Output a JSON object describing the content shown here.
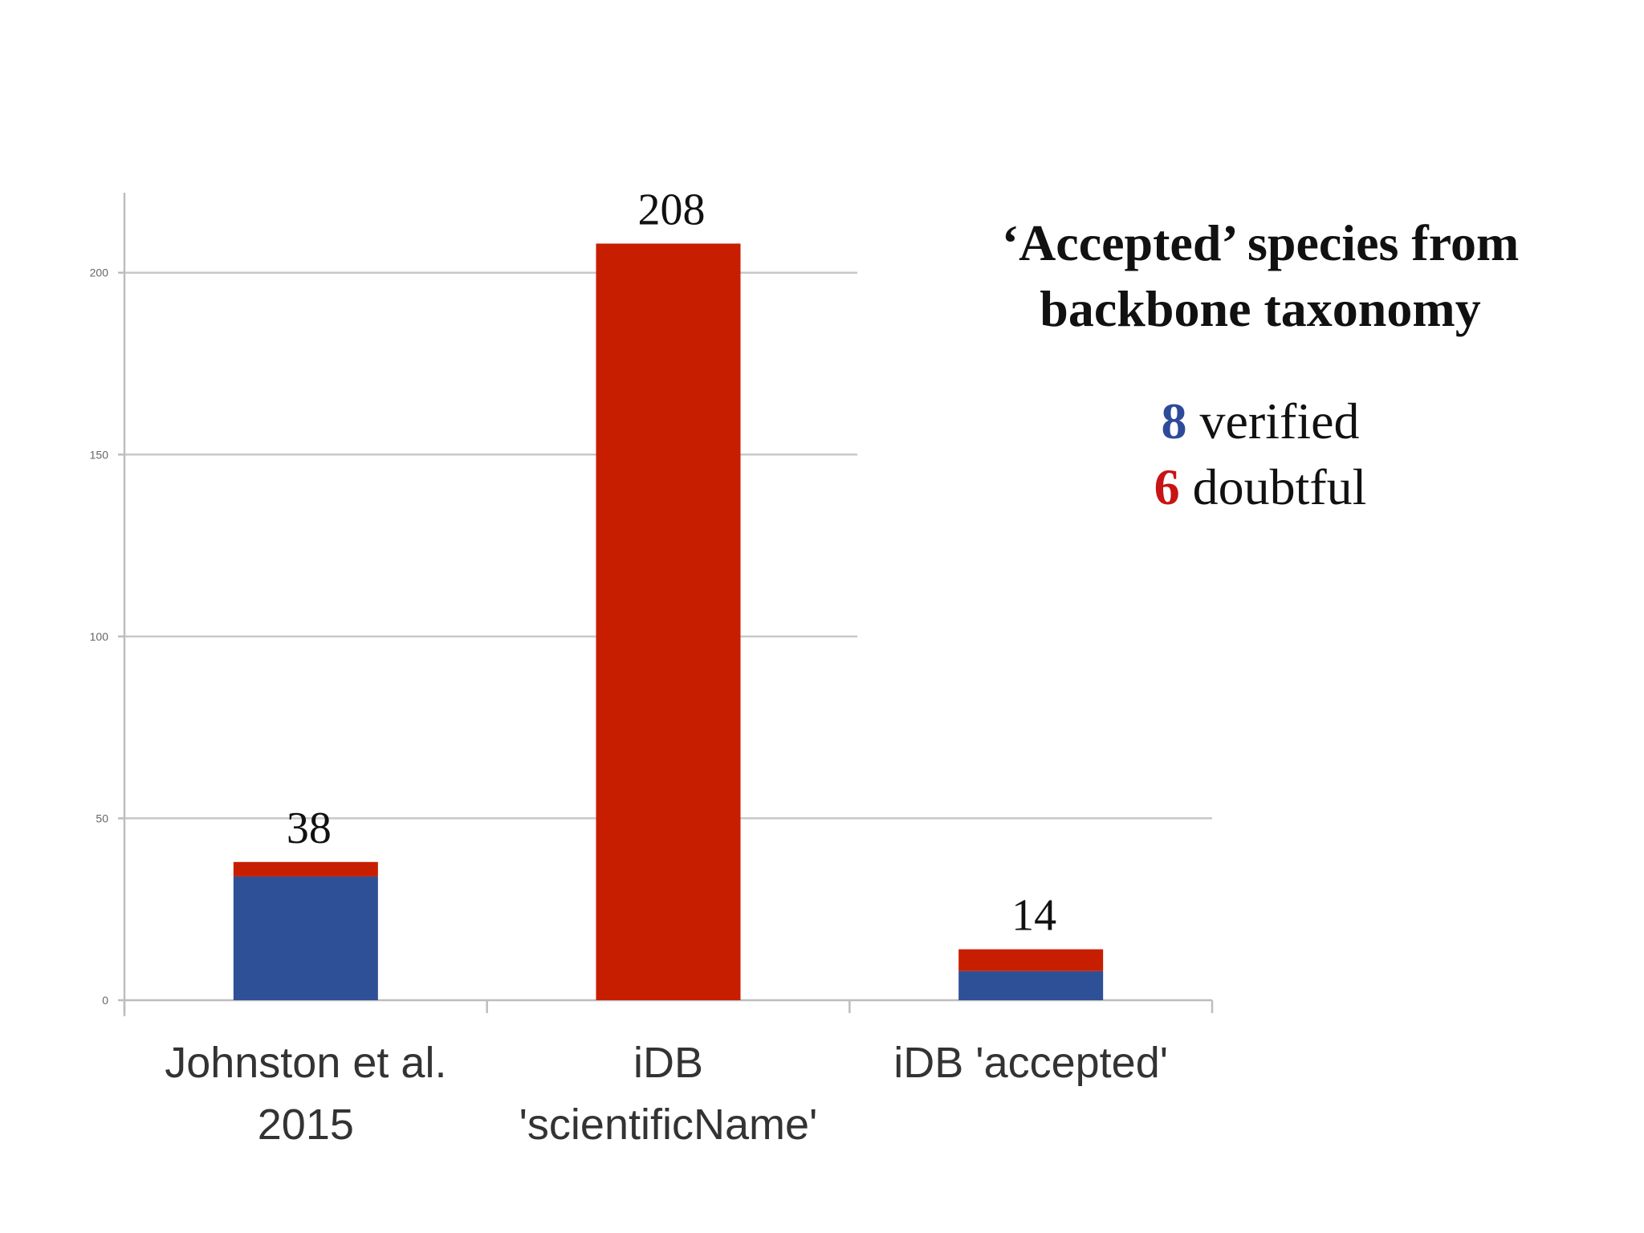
{
  "chart_data": {
    "type": "bar",
    "stacked": true,
    "categories": [
      "Johnston et al. 2015",
      "iDB 'scientificName'",
      "iDB 'accepted'"
    ],
    "category_lines": [
      [
        "Johnston et al.",
        "2015"
      ],
      [
        "iDB",
        "'scientificName'"
      ],
      [
        "iDB 'accepted'"
      ]
    ],
    "series": [
      {
        "color": "#2e5096",
        "values": [
          34,
          0,
          8
        ]
      },
      {
        "color": "#c81e00",
        "values": [
          4,
          208,
          6
        ]
      }
    ],
    "totals": [
      "38",
      "208",
      "14"
    ],
    "yticks": [
      0,
      50,
      100,
      150,
      200
    ],
    "ylim": [
      0,
      222
    ],
    "grid": true,
    "legend_placement": "top-right"
  },
  "annotation": {
    "title_lines": [
      "‘Accepted’ species from",
      "backbone taxonomy"
    ],
    "verified": {
      "count": "8",
      "label": " verified",
      "color": "#2e4b9a"
    },
    "doubtful": {
      "count": "6",
      "label": " doubtful",
      "color": "#c81414"
    }
  }
}
